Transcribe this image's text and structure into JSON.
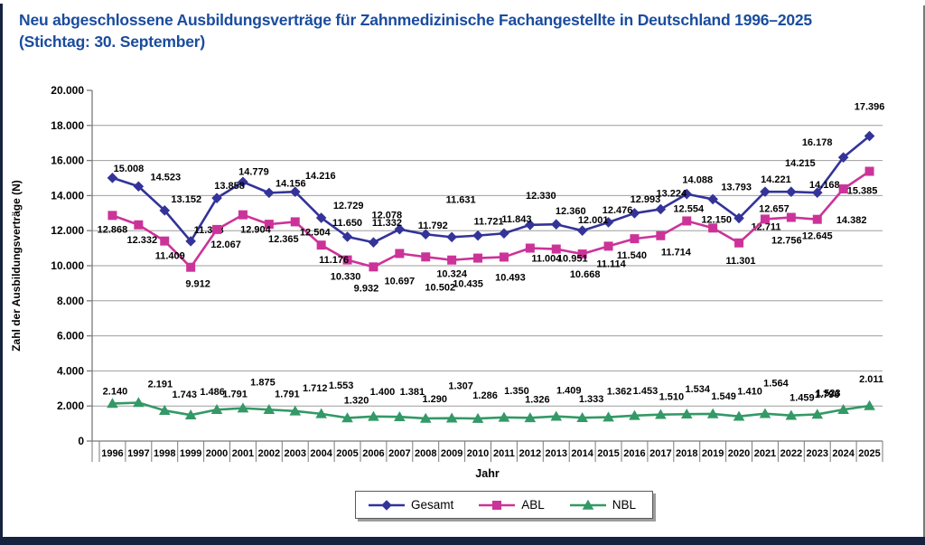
{
  "header": {
    "title_line1": "Neu abgeschlossene Ausbildungsverträge für Zahnmedizinische Fachangestellte in Deutschland 1996–2025",
    "title_line2": "(Stichtag: 30. September)"
  },
  "styles": {
    "title_color": "#1a4c9e",
    "grid_color": "#9e9e9e",
    "axis_color": "#7a7a7a",
    "label_color": "#000000",
    "frame_color": "#16233e"
  },
  "chart_data": {
    "type": "line",
    "title": "Neu abgeschlossene Ausbildungsverträge für Zahnmedizinische Fachangestellte in Deutschland 1996–2025 (Stichtag: 30. September)",
    "xlabel": "Jahr",
    "ylabel": "Zahl der Ausbildungsverträge (N)",
    "ylim": [
      0,
      20000
    ],
    "ytick_step": 2000,
    "grid": true,
    "legend_position": "bottom",
    "number_format": "de-thousands-dot",
    "categories": [
      "1996",
      "1997",
      "1998",
      "1999",
      "2000",
      "2001",
      "2002",
      "2003",
      "2004",
      "2005",
      "2006",
      "2007",
      "2008",
      "2009",
      "2010",
      "2011",
      "2012",
      "2013",
      "2014",
      "2015",
      "2016",
      "2017",
      "2018",
      "2019",
      "2020",
      "2021",
      "2022",
      "2023",
      "2024",
      "2025"
    ],
    "series": [
      {
        "name": "Gesamt",
        "color": "#333399",
        "marker": "diamond",
        "values": [
          15008,
          14523,
          13152,
          11398,
          13858,
          14779,
          14156,
          14216,
          12729,
          11650,
          11332,
          12078,
          11792,
          11631,
          11721,
          11843,
          12330,
          12360,
          12001,
          12476,
          12993,
          13224,
          14088,
          13793,
          12711,
          14221,
          14215,
          14168,
          16178,
          17396
        ],
        "label_offsets": [
          [
            18,
            -7
          ],
          [
            30,
            -7
          ],
          [
            24,
            -9
          ],
          [
            20,
            -9
          ],
          [
            14,
            -10
          ],
          [
            12,
            -8
          ],
          [
            24,
            -7
          ],
          [
            28,
            -14
          ],
          [
            30,
            -10
          ],
          [
            0,
            -12
          ],
          [
            15,
            -18
          ],
          [
            -14,
            -12
          ],
          [
            8,
            -6
          ],
          [
            10,
            -38
          ],
          [
            12,
            -12
          ],
          [
            14,
            -12
          ],
          [
            12,
            -29
          ],
          [
            16,
            -11
          ],
          [
            12,
            -8
          ],
          [
            10,
            -10
          ],
          [
            12,
            -12
          ],
          [
            12,
            -14
          ],
          [
            12,
            -12
          ],
          [
            26,
            -10
          ],
          [
            30,
            13
          ],
          [
            12,
            -10
          ],
          [
            10,
            -28
          ],
          [
            8,
            -5
          ],
          [
            -29,
            -13
          ],
          [
            0,
            -29
          ]
        ]
      },
      {
        "name": "ABL",
        "color": "#CC3399",
        "marker": "square",
        "values": [
          12868,
          12332,
          11409,
          9912,
          12067,
          12904,
          12365,
          12504,
          11176,
          10330,
          9932,
          10697,
          10502,
          10324,
          10435,
          10493,
          11004,
          10951,
          10668,
          11114,
          11540,
          11714,
          12554,
          12150,
          11301,
          12657,
          12756,
          12645,
          14382,
          15385
        ],
        "label_offsets": [
          [
            0,
            19
          ],
          [
            4,
            20
          ],
          [
            6,
            20
          ],
          [
            8,
            22
          ],
          [
            10,
            20
          ],
          [
            14,
            20
          ],
          [
            16,
            20
          ],
          [
            22,
            15
          ],
          [
            14,
            20
          ],
          [
            -2,
            22
          ],
          [
            -8,
            27
          ],
          [
            0,
            34
          ],
          [
            16,
            37
          ],
          [
            0,
            19
          ],
          [
            -11,
            32
          ],
          [
            7,
            26
          ],
          [
            18,
            15
          ],
          [
            18,
            14
          ],
          [
            3,
            26
          ],
          [
            3,
            23
          ],
          [
            -3,
            22
          ],
          [
            17,
            22
          ],
          [
            2,
            -10
          ],
          [
            4,
            -6
          ],
          [
            2,
            23
          ],
          [
            10,
            -8
          ],
          [
            -5,
            29
          ],
          [
            0,
            22
          ],
          [
            9,
            38
          ],
          [
            -8,
            25
          ]
        ]
      },
      {
        "name": "NBL",
        "color": "#339966",
        "marker": "triangle",
        "values": [
          2140,
          2191,
          1743,
          1486,
          1791,
          1875,
          1791,
          1712,
          1553,
          1320,
          1400,
          1381,
          1290,
          1307,
          1286,
          1350,
          1326,
          1409,
          1333,
          1362,
          1453,
          1510,
          1534,
          1549,
          1410,
          1564,
          1459,
          1523,
          1796,
          2011
        ],
        "label_offsets": [
          [
            3,
            -10
          ],
          [
            24,
            -17
          ],
          [
            22,
            -14
          ],
          [
            24,
            -22
          ],
          [
            20,
            -14
          ],
          [
            22,
            -25
          ],
          [
            20,
            -14
          ],
          [
            22,
            -22
          ],
          [
            22,
            -28
          ],
          [
            10,
            -16
          ],
          [
            10,
            -24
          ],
          [
            14,
            -24
          ],
          [
            10,
            -18
          ],
          [
            10,
            -32
          ],
          [
            8,
            -22
          ],
          [
            14,
            -26
          ],
          [
            8,
            -17
          ],
          [
            14,
            -25
          ],
          [
            10,
            -17
          ],
          [
            12,
            -25
          ],
          [
            12,
            -24
          ],
          [
            12,
            -16
          ],
          [
            12,
            -24
          ],
          [
            12,
            -16
          ],
          [
            12,
            -24
          ],
          [
            12,
            -30
          ],
          [
            12,
            -16
          ],
          [
            12,
            -20
          ],
          [
            -18,
            -13
          ],
          [
            2,
            -26
          ]
        ]
      }
    ]
  }
}
